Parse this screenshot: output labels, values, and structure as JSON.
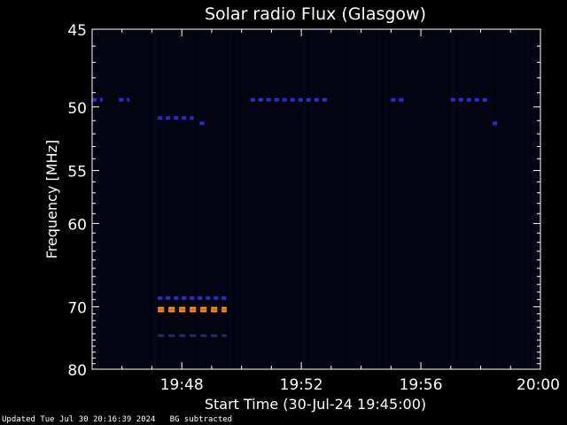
{
  "chart_data": {
    "type": "heatmap",
    "title": "Solar radio Flux (Glasgow)",
    "xlabel": "Start Time (30-Jul-24 19:45:00)",
    "ylabel": "Frequency [MHz]",
    "x_ticks": [
      "19:48",
      "19:52",
      "19:56",
      "20:00"
    ],
    "x_tick_minutes": [
      3,
      7,
      11,
      15
    ],
    "xlim_minutes": [
      0,
      15
    ],
    "y_ticks": [
      45,
      50,
      55,
      60,
      70,
      80
    ],
    "ylim": [
      45,
      80
    ],
    "y_scale": "reciprocal",
    "grid": false,
    "colors": {
      "background": "#000000",
      "plot_bg": "#03030f",
      "axis": "#ffffff",
      "weak": "#2a2ad8",
      "strong_core": "#ff5a1a",
      "strong_edge": "#e8b020",
      "faint": "#0c0c45"
    },
    "emission_lines": [
      {
        "freq": 49.5,
        "level": "weak",
        "segments": [
          [
            0.0,
            0.35
          ],
          [
            0.9,
            1.25
          ],
          [
            5.3,
            7.9
          ],
          [
            10.0,
            10.5
          ],
          [
            12.0,
            13.3
          ]
        ]
      },
      {
        "freq": 50.8,
        "level": "weak",
        "segments": [
          [
            2.2,
            3.4
          ]
        ]
      },
      {
        "freq": 51.2,
        "level": "weak",
        "segments": [
          [
            3.6,
            3.8
          ],
          [
            13.4,
            13.6
          ]
        ]
      },
      {
        "freq": 68.8,
        "level": "weak",
        "segments": [
          [
            2.2,
            4.5
          ]
        ]
      },
      {
        "freq": 70.4,
        "level": "strong",
        "segments": [
          [
            2.2,
            4.5
          ]
        ]
      },
      {
        "freq": 74.3,
        "level": "faint",
        "segments": [
          [
            2.2,
            4.5
          ]
        ]
      }
    ]
  },
  "footer": {
    "updated": "Updated Tue Jul 30 20:16:39 2024",
    "bg_note": "BG subtracted"
  }
}
